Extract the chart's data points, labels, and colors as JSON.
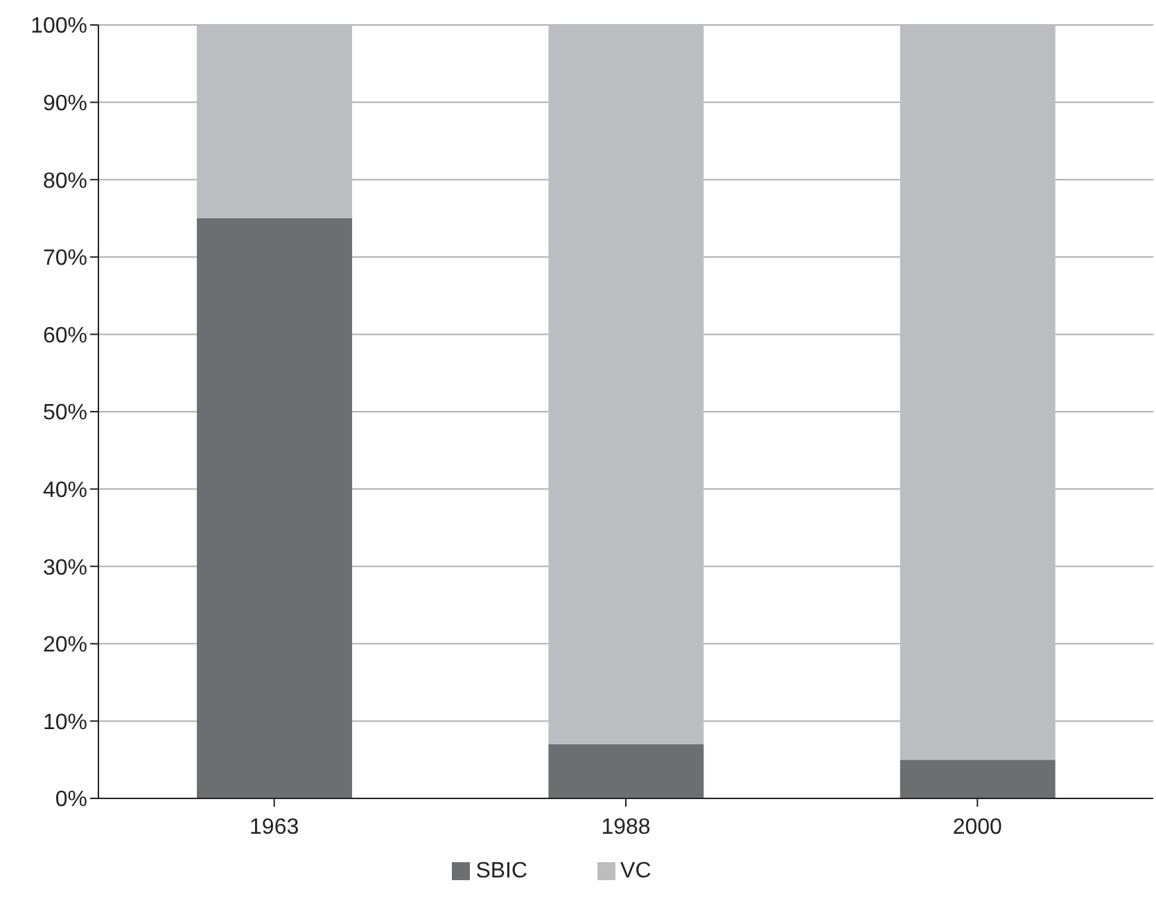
{
  "chart_data": {
    "type": "bar",
    "stacked": true,
    "categories": [
      "1963",
      "1988",
      "2000"
    ],
    "series": [
      {
        "name": "SBIC",
        "color": "#6d6e71",
        "values": [
          75,
          7,
          5
        ]
      },
      {
        "name": "VC",
        "color": "#bcbdc1",
        "values": [
          25,
          93,
          95
        ]
      }
    ],
    "ylim": [
      0,
      100
    ],
    "yticks": [
      {
        "value": 0,
        "label": "0%"
      },
      {
        "value": 10,
        "label": "10%"
      },
      {
        "value": 20,
        "label": "20%"
      },
      {
        "value": 30,
        "label": "30%"
      },
      {
        "value": 40,
        "label": "40%"
      },
      {
        "value": 50,
        "label": "50%"
      },
      {
        "value": 60,
        "label": "60%"
      },
      {
        "value": 70,
        "label": "70%"
      },
      {
        "value": 80,
        "label": "80%"
      },
      {
        "value": 90,
        "label": "90%"
      },
      {
        "value": 100,
        "label": "100%"
      }
    ],
    "grid": "y",
    "legend": "bottom"
  }
}
